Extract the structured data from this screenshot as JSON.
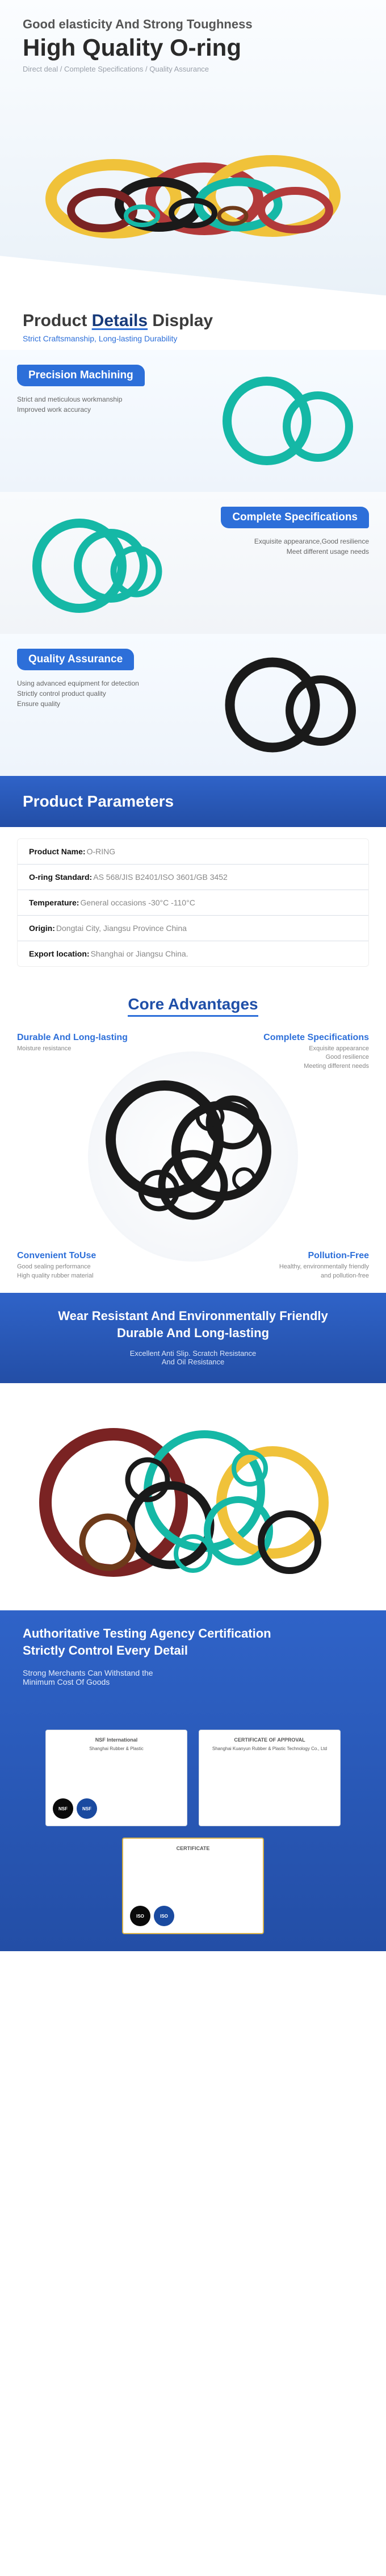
{
  "hero": {
    "subtitle": "Good elasticity And Strong Toughness",
    "title": "High Quality O-ring",
    "tagline": "Direct deal / Complete Specifications / Quality Assurance"
  },
  "details_header": {
    "title_plain": "Product ",
    "title_underlined": "Details",
    "title_trail": " Display",
    "subtitle": "Strict Craftsmanship, Long-lasting Durability"
  },
  "features": [
    {
      "pill": "Precision Machining",
      "desc": "Strict and meticulous workmanship\nImproved work accuracy",
      "image_side": "right",
      "ring_colors": [
        "#15b8a6",
        "#15b8a6"
      ]
    },
    {
      "pill": "Complete Specifications",
      "desc": "Exquisite appearance,Good resilience\nMeet different usage needs",
      "image_side": "left",
      "ring_colors": [
        "#15b8a6",
        "#15b8a6",
        "#15b8a6"
      ]
    },
    {
      "pill": "Quality Assurance",
      "desc": "Using advanced equipment for detection\nStrictly control product quality\nEnsure quality",
      "image_side": "right",
      "ring_colors": [
        "#1a1a1a",
        "#1a1a1a"
      ]
    }
  ],
  "parameters": {
    "heading": "Product  Parameters",
    "rows": [
      {
        "k": "Product Name:",
        "v": "O-RING"
      },
      {
        "k": "O-ring Standard:",
        "v": "AS 568/JIS B2401/ISO 3601/GB 3452"
      },
      {
        "k": "Temperature:",
        "v": " General occasions -30°C -110°C"
      },
      {
        "k": "Origin:",
        "v": "Dongtai City, Jiangsu Province China"
      },
      {
        "k": "Export location:",
        "v": "Shanghai or Jiangsu China."
      }
    ]
  },
  "core": {
    "heading": "Core Advantages",
    "corners": [
      {
        "pos": "tl",
        "title": "Durable And Long-lasting",
        "desc": "Moisture resistance"
      },
      {
        "pos": "tr",
        "title": "Complete Specifications",
        "desc": "Exquisite appearance\nGood resilience\nMeeting different needs"
      },
      {
        "pos": "bl",
        "title": "Convenient ToUse",
        "desc": "Good sealing performance\nHigh quality rubber material"
      },
      {
        "pos": "br",
        "title": "Pollution-Free",
        "desc": "Healthy, environmentally friendly\nand pollution-free"
      }
    ]
  },
  "mid": {
    "title1": "Wear Resistant And Environmentally Friendly",
    "title2": "Durable And Long-lasting",
    "sub": "Excellent Anti Slip. Scratch Resistance\nAnd Oil Resistance"
  },
  "cert": {
    "title1": "Authoritative Testing Agency Certification",
    "title2": "Strictly Control Every Detail",
    "sub": "Strong Merchants Can Withstand the\nMinimum Cost Of Goods",
    "cards": [
      {
        "org": "NSF International",
        "subject": "Shanghai Rubber & Plastic",
        "badge_text": "NSF"
      },
      {
        "org": "CERTIFICATE OF APPROVAL",
        "subject": "Shanghai Kuanyun Rubber & Plastic Technology Co., Ltd",
        "badge_text": ""
      },
      {
        "org": "CERTIFICATE",
        "subject": "",
        "badge_text": "ISO"
      }
    ]
  },
  "palette": {
    "ring_black": "#1a1a1a",
    "ring_teal": "#15b8a6",
    "ring_red": "#b23a3a",
    "ring_yellow": "#f0c23a",
    "ring_brown": "#6d3a1a",
    "ring_dark_red": "#7a2323"
  }
}
